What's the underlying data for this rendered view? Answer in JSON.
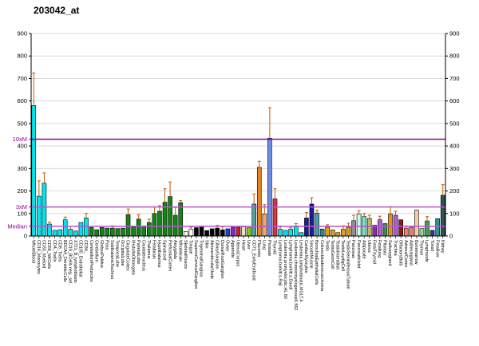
{
  "title": "203042_at",
  "chart_data": {
    "type": "bar",
    "title": "203042_at",
    "xlabel": "",
    "ylabel": "",
    "ylim": [
      0,
      900
    ],
    "y_tick_step": 100,
    "grid": true,
    "legend": "none",
    "error_bar_color": "#C05A00",
    "reference_lines": [
      {
        "label": "10xM",
        "value": 430,
        "line_color": "#8B008B",
        "label_color": "#990099"
      },
      {
        "label": "3xM",
        "value": 129,
        "line_color": "#BA55D3",
        "label_color": "#990099"
      },
      {
        "label": "Median",
        "value": 43,
        "line_color": "#BA55D3",
        "label_color": "#990099"
      }
    ],
    "categories": [
      "WholeBlood",
      "CD14_Monocytes",
      "CD33_Myeloid",
      "CD56_NKCells",
      "CD4_Tcells",
      "CD8_Tcells",
      "BDCA4_DentriticCells",
      "CD19_BCells.neg._sel..",
      "X721_B_lymphoblasts",
      "CD105_Endothelial",
      "CD34_",
      "CerebellumPeduncles",
      "Cerebellum",
      "GlobusPalidus",
      "Pons",
      "SubthalamicNucleus",
      "TemporalLobe",
      "OccipitalLobe",
      "CingulateCortex",
      "MedullaOblongata",
      "ParietalLobe",
      "Caudatenucleus",
      "Thalamus",
      "Fetalbrain",
      "Hypothalamus",
      "Spinalcord",
      "PrefrontalCortex",
      "Amygdala",
      "Wholebrain",
      "SkeletalMuscle",
      "Tongue",
      "SuperiorCervicalGanglion",
      "TrigeminalGanglion",
      "Skin",
      "AtrioventricularNode",
      "CiliaryGanglion",
      "DorsalRootGanglion",
      "Ovary",
      "Appendix",
      "UterusCorpus",
      "Heart",
      "Liver",
      "CD71_EarlyErythroid",
      "Placenta",
      "Lung",
      "Prostate",
      "Thyroid",
      "Lymphoma.burkitt.s.Raji",
      "Leukemia.promyelocytic.HL.60",
      "Lymphoma.burkitt.s.Daudi",
      "Leukemia.chronicmyelogenousK.562",
      "Leukemia.lymphoblastic.MOLT.4",
      "CardiacMyocytes",
      "SmoothMuscle",
      "BronchialEpithelialCells",
      "Colorectaladenocarcinoma",
      "Testis",
      "TestisGermCell",
      "TestisInterstitial",
      "TestisLeydigCell",
      "TestisSeminiferousTubule",
      "Pancreas",
      "PancreaticIslet",
      "Adipocyte",
      "Uterus",
      "FetalThyroid",
      "Fetallung",
      "Pituitary",
      "Salivarygland",
      "Trachea",
      "OlfactoryBulb",
      "AdrenalCortex",
      "Adrenalgland",
      "Bonemarrow",
      "Thymus",
      "Lymphnode",
      "Tonsil",
      "Fetalliver",
      "Kidney"
    ],
    "values": [
      580,
      177,
      235,
      53,
      25,
      28,
      72,
      30,
      22,
      60,
      80,
      38,
      28,
      38,
      35,
      35,
      33,
      35,
      95,
      40,
      75,
      45,
      60,
      100,
      110,
      150,
      175,
      92,
      148,
      20,
      30,
      37,
      42,
      24,
      32,
      35,
      27,
      32,
      39,
      39,
      41,
      37,
      142,
      305,
      98,
      435,
      165,
      30,
      25,
      30,
      45,
      15,
      80,
      142,
      102,
      31,
      39,
      27,
      15,
      30,
      39,
      68,
      98,
      86,
      78,
      48,
      72,
      55,
      98,
      92,
      72,
      35,
      39,
      115,
      33,
      67,
      25,
      77,
      181
    ],
    "errors_high": [
      724,
      245,
      280,
      62,
      null,
      null,
      84,
      42,
      null,
      null,
      100,
      null,
      null,
      null,
      null,
      45,
      null,
      null,
      120,
      null,
      95,
      null,
      75,
      130,
      135,
      210,
      240,
      127,
      157,
      null,
      39,
      null,
      null,
      null,
      null,
      47,
      41,
      null,
      null,
      null,
      null,
      null,
      187,
      332,
      139,
      570,
      210,
      40,
      null,
      38,
      55,
      null,
      104,
      170,
      115,
      null,
      50,
      null,
      null,
      45,
      57,
      92,
      112,
      100,
      92,
      null,
      88,
      null,
      130,
      110,
      null,
      45,
      null,
      null,
      null,
      86,
      null,
      null,
      228
    ],
    "bar_colors": [
      "#00E5EE",
      "#00E5EE",
      "#00E5EE",
      "#00E5EE",
      "#00E5EE",
      "#00E5EE",
      "#00E5EE",
      "#00E5EE",
      "#00E5EE",
      "#00E5EE",
      "#00E5EE",
      "#148414",
      "#148414",
      "#148414",
      "#148414",
      "#148414",
      "#148414",
      "#148414",
      "#148414",
      "#148414",
      "#148414",
      "#148414",
      "#148414",
      "#148414",
      "#148414",
      "#148414",
      "#148414",
      "#148414",
      "#148414",
      "#FFFFF0",
      "#FFFFF0",
      "#000000",
      "#000000",
      "#000000",
      "#000000",
      "#000000",
      "#000000",
      "#2442C8",
      "#8B22CC",
      "#C42323",
      "#EFE0B8",
      "#7CCF12",
      "#56A0A0",
      "#E8821E",
      "#F5A470",
      "#6D8EE8",
      "#DD3344",
      "#00E5EE",
      "#00E5EE",
      "#00E5EE",
      "#00E5EE",
      "#00E5EE",
      "#1C1C99",
      "#1C1C99",
      "#4A9FA8",
      "#2E8B8B",
      "#DDA018",
      "#DDA018",
      "#DDA018",
      "#DDA018",
      "#DDA018",
      "#909090",
      "#CFF5F0",
      "#6FE8C8",
      "#BDB76B",
      "#A020C0",
      "#B05FD0",
      "#3D8B4A",
      "#E89018",
      "#B05FD0",
      "#8B1A1A",
      "#F08070",
      "#F08070",
      "#F7CBA8",
      "#8FD89F",
      "#3FA34D",
      "#3333AA",
      "#2E9494",
      "#2F5555"
    ]
  }
}
